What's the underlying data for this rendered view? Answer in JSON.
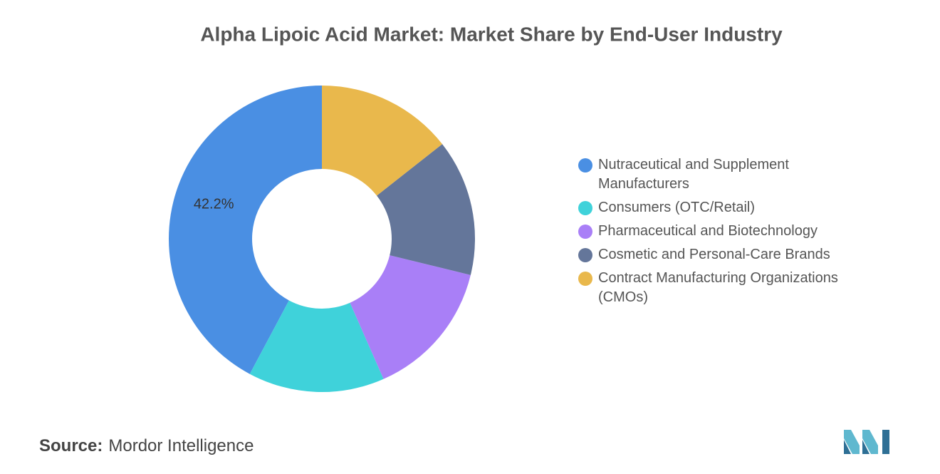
{
  "chart_data": {
    "type": "donut",
    "title": "Alpha Lipoic Acid Market: Market Share by End-User Industry",
    "categories": [
      "Nutraceutical and Supplement Manufacturers",
      "Consumers (OTC/Retail)",
      "Pharmaceutical and Biotechnology",
      "Cosmetic and Personal-Care Brands",
      "Contract Manufacturing Organizations (CMOs)"
    ],
    "values": [
      42.2,
      14.4,
      14.6,
      14.4,
      14.4
    ],
    "value_labels": [
      "42.2%",
      null,
      null,
      null,
      null
    ],
    "colors": [
      "#4a8fe3",
      "#3fd2da",
      "#a97ff7",
      "#64769a",
      "#e9b84c"
    ],
    "legend": "right"
  },
  "source": {
    "label": "Source:",
    "text": "Mordor Intelligence"
  }
}
